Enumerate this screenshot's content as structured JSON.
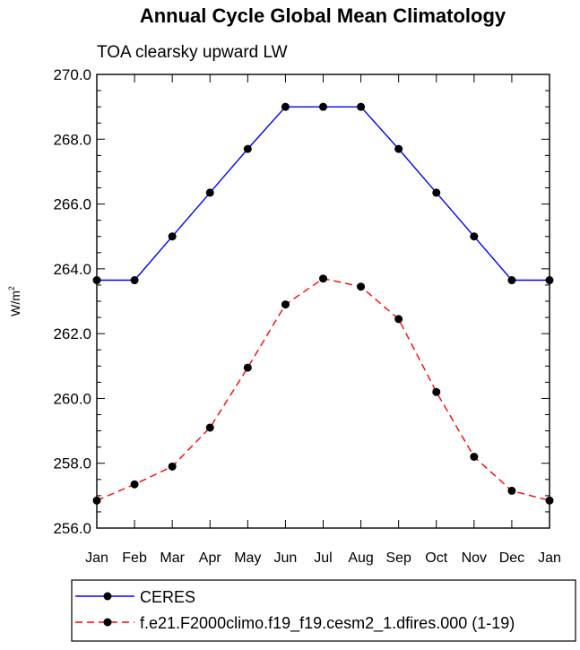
{
  "chart_data": {
    "type": "line",
    "title": "Annual Cycle Global Mean Climatology",
    "subtitle": "TOA clearsky upward LW",
    "ylabel": "W/m",
    "ylabel_superscript": "2",
    "xlabel": "",
    "categories": [
      "Jan",
      "Feb",
      "Mar",
      "Apr",
      "May",
      "Jun",
      "Jul",
      "Aug",
      "Sep",
      "Oct",
      "Nov",
      "Dec",
      "Jan"
    ],
    "ylim": [
      256.0,
      270.0
    ],
    "yticks": [
      256.0,
      258.0,
      260.0,
      262.0,
      264.0,
      266.0,
      268.0,
      270.0
    ],
    "ytick_labels": [
      "256.0",
      "258.0",
      "260.0",
      "262.0",
      "264.0",
      "266.0",
      "268.0",
      "270.0"
    ],
    "series": [
      {
        "name": "CERES",
        "color": "#0000ff",
        "dash": "solid",
        "values": [
          263.65,
          263.65,
          265.0,
          266.35,
          267.7,
          269.0,
          269.0,
          269.0,
          267.7,
          266.35,
          265.0,
          263.65,
          263.65
        ]
      },
      {
        "name": "f.e21.F2000climo.f19_f19.cesm2_1.dfires.000 (1-19)",
        "color": "#ff0000",
        "dash": "dashed",
        "values": [
          256.85,
          257.35,
          257.9,
          259.1,
          260.95,
          262.9,
          263.7,
          263.45,
          262.45,
          260.2,
          258.2,
          257.15,
          256.85
        ]
      }
    ],
    "legend_position": "bottom"
  }
}
